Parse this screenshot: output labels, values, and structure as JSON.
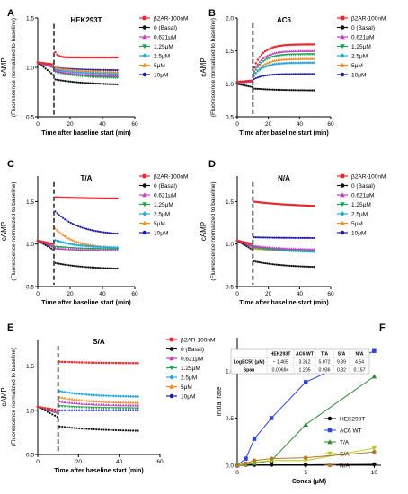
{
  "colors": {
    "b2ar": "#e8262d",
    "basal": "#111111",
    "c0621": "#c53fc0",
    "c125": "#17a64a",
    "c25": "#27a9e1",
    "c5": "#f58a1f",
    "c10": "#1b1ba8",
    "dash": "#555555",
    "hek": "#000000",
    "ac6": "#2b43e0",
    "ta": "#2f8a2f",
    "sa": "#b9c427",
    "na": "#b07a2a"
  },
  "legend_labels": [
    "β2AR-100nM",
    "0 (Basal)",
    "0.621μM",
    "1.25μM",
    "2.5μM",
    "5μM",
    "10μM"
  ],
  "chart_data": [
    {
      "panel": "A",
      "title": "HEK293T",
      "type": "line",
      "ylabel_main": "cAMP",
      "ylabel_sub": "(Fluorescence normalized to baseline)",
      "xlabel": "Time after baseline start (min)",
      "xlim": [
        0,
        60
      ],
      "ylim": [
        0.5,
        1.5
      ],
      "xticks": [
        0,
        20,
        40,
        60
      ],
      "yticks": [
        {
          "v": 0.5,
          "t": "0.5"
        },
        {
          "v": 1.0,
          "t": "1.0"
        },
        {
          "v": 1.5,
          "t": "1.5"
        }
      ],
      "stim_x": 10,
      "series": [
        {
          "key": "b2ar",
          "marker": "square",
          "pre": [
            1.05,
            1.03
          ],
          "jump": 1.18,
          "steady": 1.1,
          "tau": 2
        },
        {
          "key": "basal",
          "marker": "circle",
          "pre": [
            1.05,
            0.92
          ],
          "jump": 0.88,
          "steady": 0.82,
          "tau": 20
        },
        {
          "key": "c0621",
          "marker": "triangle",
          "pre": [
            1.05,
            1.0
          ],
          "jump": 0.97,
          "steady": 0.91,
          "tau": 15
        },
        {
          "key": "c125",
          "marker": "triangle-down",
          "pre": [
            1.05,
            1.0
          ],
          "jump": 0.96,
          "steady": 0.89,
          "tau": 15
        },
        {
          "key": "c25",
          "marker": "diamond",
          "pre": [
            1.05,
            1.0
          ],
          "jump": 0.98,
          "steady": 0.93,
          "tau": 15
        },
        {
          "key": "c5",
          "marker": "triangle",
          "pre": [
            1.05,
            1.01
          ],
          "jump": 1.0,
          "steady": 0.95,
          "tau": 15
        },
        {
          "key": "c10",
          "marker": "circle",
          "pre": [
            1.05,
            1.01
          ],
          "jump": 1.0,
          "steady": 0.97,
          "tau": 15
        }
      ]
    },
    {
      "panel": "B",
      "title": "AC6",
      "type": "line",
      "ylabel_main": "cAMP",
      "ylabel_sub": "(Fluorescence normalized to baseline)",
      "xlabel": "Time after baseline start (min)",
      "xlim": [
        0,
        60
      ],
      "ylim": [
        0.5,
        2.0
      ],
      "xticks": [
        0,
        20,
        40,
        60
      ],
      "yticks": [
        {
          "v": 0.5,
          "t": "0.5"
        },
        {
          "v": 1.0,
          "t": "1.0"
        },
        {
          "v": 1.5,
          "t": "1.5"
        },
        {
          "v": 2.0,
          "t": "2.0"
        }
      ],
      "stim_x": 10,
      "series": [
        {
          "key": "b2ar",
          "marker": "square",
          "pre": [
            1.03,
            1.05
          ],
          "jump": 1.2,
          "steady": 1.6,
          "tau": 6
        },
        {
          "key": "basal",
          "marker": "circle",
          "pre": [
            1.0,
            0.95
          ],
          "jump": 0.93,
          "steady": 0.9,
          "tau": 15
        },
        {
          "key": "c0621",
          "marker": "triangle",
          "pre": [
            1.02,
            1.04
          ],
          "jump": 1.15,
          "steady": 1.5,
          "tau": 6
        },
        {
          "key": "c125",
          "marker": "triangle-down",
          "pre": [
            1.02,
            1.04
          ],
          "jump": 1.12,
          "steady": 1.45,
          "tau": 6
        },
        {
          "key": "c25",
          "marker": "diamond",
          "pre": [
            1.02,
            1.04
          ],
          "jump": 1.1,
          "steady": 1.32,
          "tau": 6
        },
        {
          "key": "c5",
          "marker": "triangle",
          "pre": [
            1.02,
            1.04
          ],
          "jump": 1.08,
          "steady": 1.38,
          "tau": 6
        },
        {
          "key": "c10",
          "marker": "circle",
          "pre": [
            1.02,
            1.04
          ],
          "jump": 1.06,
          "steady": 1.15,
          "tau": 6
        }
      ]
    },
    {
      "panel": "C",
      "title": "T/A",
      "type": "line",
      "ylabel_main": "cAMP",
      "ylabel_sub": "(Fluorescence normalized to baseline)",
      "xlabel": "Time after baseline start (min)",
      "xlim": [
        0,
        60
      ],
      "ylim": [
        0.5,
        1.8
      ],
      "xticks": [
        0,
        20,
        40,
        60
      ],
      "yticks": [
        {
          "v": 0.5,
          "t": "0.5"
        },
        {
          "v": 1.0,
          "t": "1.0"
        },
        {
          "v": 1.5,
          "t": "1.5"
        }
      ],
      "stim_x": 10,
      "series": [
        {
          "key": "b2ar",
          "marker": "square",
          "pre": [
            1.04,
            1.0
          ],
          "jump": 1.55,
          "steady": 1.53,
          "tau": 30
        },
        {
          "key": "basal",
          "marker": "circle",
          "pre": [
            1.04,
            0.93
          ],
          "jump": 0.78,
          "steady": 0.7,
          "tau": 20
        },
        {
          "key": "c0621",
          "marker": "triangle",
          "pre": [
            1.04,
            0.97
          ],
          "jump": 0.95,
          "steady": 0.92,
          "tau": 20
        },
        {
          "key": "c125",
          "marker": "triangle-down",
          "pre": [
            1.04,
            0.97
          ],
          "jump": 0.97,
          "steady": 0.93,
          "tau": 20
        },
        {
          "key": "c25",
          "marker": "diamond",
          "pre": [
            1.04,
            0.97
          ],
          "jump": 1.05,
          "steady": 0.95,
          "tau": 15
        },
        {
          "key": "c5",
          "marker": "triangle",
          "pre": [
            1.04,
            0.97
          ],
          "jump": 1.2,
          "steady": 0.95,
          "tau": 12
        },
        {
          "key": "c10",
          "marker": "circle",
          "pre": [
            1.04,
            0.97
          ],
          "jump": 1.4,
          "steady": 1.1,
          "tau": 15
        }
      ]
    },
    {
      "panel": "D",
      "title": "N/A",
      "type": "line",
      "ylabel_main": "cAMP",
      "ylabel_sub": "(Fluorescence normalized to baseline)",
      "xlabel": "Time after baseline start (min)",
      "xlim": [
        0,
        60
      ],
      "ylim": [
        0.5,
        1.8
      ],
      "xticks": [
        0,
        20,
        40,
        60
      ],
      "yticks": [
        {
          "v": 0.5,
          "t": "0.5"
        },
        {
          "v": 1.0,
          "t": "1.0"
        },
        {
          "v": 1.5,
          "t": "1.5"
        }
      ],
      "stim_x": 10,
      "series": [
        {
          "key": "b2ar",
          "marker": "square",
          "pre": [
            1.04,
            1.0
          ],
          "jump": 1.5,
          "steady": 1.43,
          "tau": 30
        },
        {
          "key": "basal",
          "marker": "circle",
          "pre": [
            1.04,
            0.93
          ],
          "jump": 0.8,
          "steady": 0.72,
          "tau": 20
        },
        {
          "key": "c0621",
          "marker": "triangle",
          "pre": [
            1.04,
            0.97
          ],
          "jump": 0.98,
          "steady": 0.93,
          "tau": 20
        },
        {
          "key": "c125",
          "marker": "triangle-down",
          "pre": [
            1.04,
            0.97
          ],
          "jump": 0.96,
          "steady": 0.92,
          "tau": 20
        },
        {
          "key": "c25",
          "marker": "diamond",
          "pre": [
            1.04,
            0.97
          ],
          "jump": 0.97,
          "steady": 0.9,
          "tau": 20
        },
        {
          "key": "c5",
          "marker": "triangle",
          "pre": [
            1.04,
            0.97
          ],
          "jump": 0.95,
          "steady": 0.91,
          "tau": 20
        },
        {
          "key": "c10",
          "marker": "circle",
          "pre": [
            1.04,
            0.97
          ],
          "jump": 1.08,
          "steady": 1.07,
          "tau": 20
        }
      ]
    },
    {
      "panel": "E",
      "title": "S/A",
      "type": "line",
      "ylabel_main": "cAMP",
      "ylabel_sub": "(Fluorescence normalized to baseline)",
      "xlabel": "Time after baseline start (min)",
      "xlim": [
        0,
        60
      ],
      "ylim": [
        0.5,
        1.8
      ],
      "xticks": [
        0,
        20,
        40,
        60
      ],
      "yticks": [
        {
          "v": 0.5,
          "t": "0.5"
        },
        {
          "v": 1.0,
          "t": "1.0"
        },
        {
          "v": 1.5,
          "t": "1.5"
        }
      ],
      "stim_x": 10,
      "series": [
        {
          "key": "b2ar",
          "marker": "square",
          "pre": [
            1.04,
            1.0
          ],
          "jump": 1.55,
          "steady": 1.53,
          "tau": 20
        },
        {
          "key": "basal",
          "marker": "circle",
          "pre": [
            1.04,
            0.92
          ],
          "jump": 0.82,
          "steady": 0.76,
          "tau": 20
        },
        {
          "key": "c0621",
          "marker": "triangle",
          "pre": [
            1.04,
            0.97
          ],
          "jump": 1.1,
          "steady": 1.05,
          "tau": 15
        },
        {
          "key": "c125",
          "marker": "triangle-down",
          "pre": [
            1.04,
            0.97
          ],
          "jump": 1.05,
          "steady": 1.02,
          "tau": 15
        },
        {
          "key": "c25",
          "marker": "diamond",
          "pre": [
            1.04,
            0.97
          ],
          "jump": 1.22,
          "steady": 1.15,
          "tau": 15
        },
        {
          "key": "c5",
          "marker": "triangle",
          "pre": [
            1.04,
            0.97
          ],
          "jump": 1.15,
          "steady": 1.08,
          "tau": 15
        },
        {
          "key": "c10",
          "marker": "circle",
          "pre": [
            1.04,
            0.97
          ],
          "jump": 1.0,
          "steady": 1.0,
          "tau": 15
        }
      ]
    },
    {
      "panel": "F",
      "title": "",
      "type": "line",
      "ylabel": "Initial rate",
      "xlabel": "Concs (μM)",
      "xlim": [
        0,
        10.5
      ],
      "ylim": [
        0,
        1.35
      ],
      "xticks": [
        0,
        5,
        10
      ],
      "yticks": [
        {
          "v": 0,
          "t": "0.0"
        },
        {
          "v": 0.5,
          "t": "0.5"
        },
        {
          "v": 1.0,
          "t": "1.0"
        }
      ],
      "x": [
        0,
        0.625,
        1.25,
        2.5,
        5,
        10
      ],
      "series": [
        {
          "name": "HEK293T",
          "key": "hek",
          "marker": "circle",
          "values": [
            0,
            0.005,
            0.005,
            0.005,
            0.005,
            0.01
          ]
        },
        {
          "name": "AC6 WT",
          "key": "ac6",
          "marker": "square",
          "values": [
            0,
            0.07,
            0.28,
            0.5,
            0.88,
            1.21
          ]
        },
        {
          "name": "T/A",
          "key": "ta",
          "marker": "triangle",
          "values": [
            0,
            0.01,
            0.02,
            0.05,
            0.43,
            0.94
          ]
        },
        {
          "name": "S/A",
          "key": "sa",
          "marker": "triangle-down",
          "values": [
            0,
            0.01,
            0.03,
            0.05,
            0.05,
            0.18
          ]
        },
        {
          "name": "N/A",
          "key": "na",
          "marker": "circle",
          "values": [
            0,
            0.02,
            0.05,
            0.07,
            0.08,
            0.14
          ]
        }
      ],
      "table": {
        "headers": [
          "",
          "HEK293T",
          "AC6 WT",
          "T/A",
          "S/A",
          "N/A"
        ],
        "rows": [
          [
            "LogEC50 (μM)",
            "~ 1.465",
            "3.312",
            "5.072",
            "9.39",
            "4.54"
          ],
          [
            "Span",
            "0.00694",
            "1.205",
            "0.936",
            "0.32",
            "0.157"
          ]
        ]
      }
    }
  ]
}
